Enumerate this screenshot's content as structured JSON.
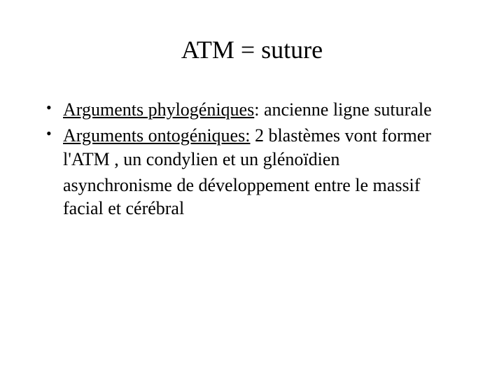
{
  "slide": {
    "title": "ATM = suture",
    "bullet1": {
      "label": "Arguments phylogéniques",
      "text": ": ancienne ligne suturale"
    },
    "bullet2": {
      "label": "Arguments ontogéniques:",
      "text": "  2 blastèmes vont former l'ATM , un condylien et un glénoïdien"
    },
    "continuation": "asynchronisme de développement entre le massif facial et cérébral",
    "colors": {
      "background": "#ffffff",
      "text": "#000000"
    },
    "typography": {
      "title_fontsize": 36,
      "body_fontsize": 26,
      "font_family": "Times New Roman"
    }
  }
}
